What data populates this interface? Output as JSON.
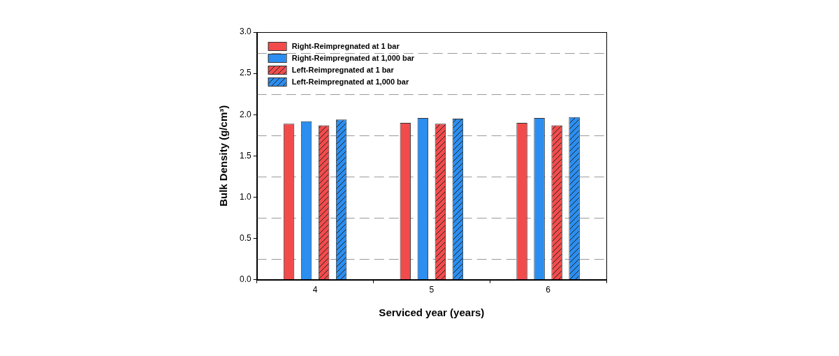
{
  "chart_data": {
    "type": "bar",
    "x_label": "Serviced year (years)",
    "y_label": "Bulk Density (g/cm³)",
    "categories": [
      "4",
      "5",
      "6"
    ],
    "series": [
      {
        "name": "Right-Reimpregnated at 1 bar",
        "color": "#f24b4b",
        "marker": "solid",
        "values": [
          1.89,
          1.9,
          1.9
        ]
      },
      {
        "name": "Right-Reimpregnated at 1,000 bar",
        "color": "#2b8ef0",
        "marker": "solid",
        "values": [
          1.92,
          1.96,
          1.96
        ]
      },
      {
        "name": "Left-Reimpregnated at 1 bar",
        "color": "#f24b4b",
        "marker": "hatch",
        "values": [
          1.87,
          1.89,
          1.87
        ]
      },
      {
        "name": "Left-Reimpregnated at 1,000 bar",
        "color": "#2b8ef0",
        "marker": "hatch",
        "values": [
          1.94,
          1.95,
          1.97
        ]
      }
    ],
    "ylim": [
      0,
      3
    ],
    "yticks": [
      {
        "value": 0,
        "label": "0.0"
      },
      {
        "value": 0.5,
        "label": "0.5"
      },
      {
        "value": 1,
        "label": "1.0"
      },
      {
        "value": 1.5,
        "label": "1.5"
      },
      {
        "value": 2,
        "label": "2.0"
      },
      {
        "value": 2.5,
        "label": "2.5"
      },
      {
        "value": 3,
        "label": "3.0"
      }
    ],
    "grid": true,
    "legend": "upper left"
  }
}
